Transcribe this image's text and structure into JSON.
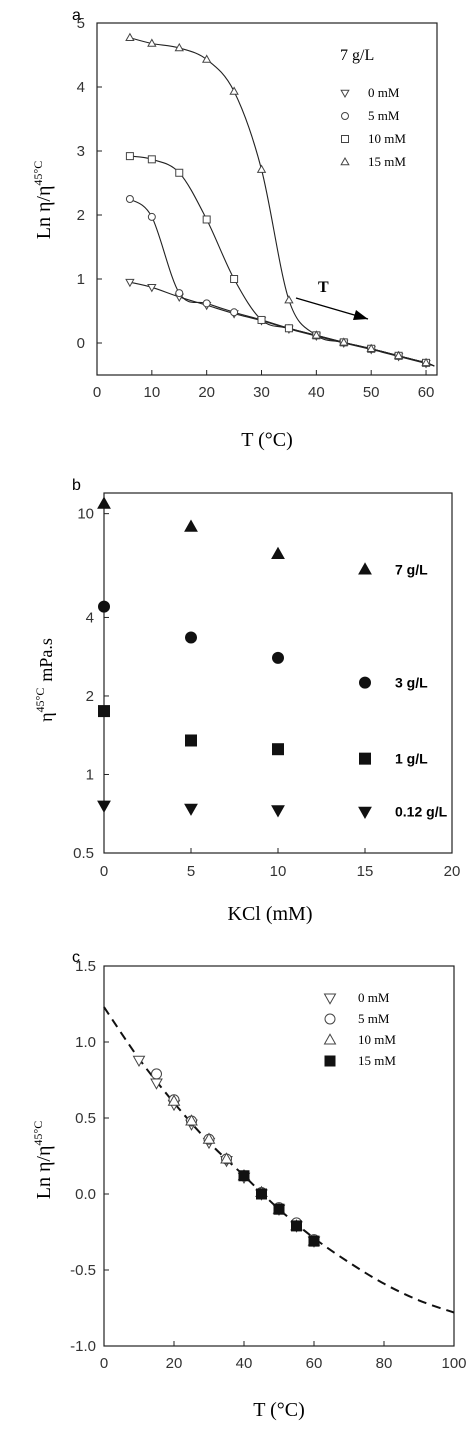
{
  "chart_data": [
    {
      "panel": "a",
      "type": "scatter",
      "xlabel": "T (°C)",
      "ylabel": "Ln η/η",
      "ylabel_sup": "45°C",
      "xlim": [
        0,
        62
      ],
      "ylim": [
        -0.5,
        5
      ],
      "xticks": [
        "0",
        "10",
        "20",
        "30",
        "40",
        "50",
        "60"
      ],
      "yticks": [
        "0",
        "1",
        "2",
        "3",
        "4",
        "5"
      ],
      "annotation": "7 g/L",
      "arrow_label": "T",
      "series": [
        {
          "name": "0 mM",
          "marker": "triangle-down",
          "x": [
            6,
            10,
            15,
            20,
            25,
            30,
            35,
            40,
            45,
            50,
            55,
            60
          ],
          "y": [
            0.95,
            0.87,
            0.72,
            0.59,
            0.46,
            0.35,
            0.22,
            0.11,
            0.0,
            -0.1,
            -0.21,
            -0.32
          ]
        },
        {
          "name": "5 mM",
          "marker": "circle",
          "x": [
            6,
            10,
            15,
            20,
            25,
            30,
            35,
            40,
            45,
            50,
            55,
            60
          ],
          "y": [
            2.25,
            1.97,
            0.78,
            0.62,
            0.48,
            0.36,
            0.23,
            0.12,
            0.01,
            -0.09,
            -0.2,
            -0.31
          ]
        },
        {
          "name": "10 mM",
          "marker": "square",
          "x": [
            6,
            10,
            15,
            20,
            25,
            30,
            35,
            40,
            45,
            50,
            55,
            60
          ],
          "y": [
            2.92,
            2.87,
            2.66,
            1.93,
            1.0,
            0.36,
            0.23,
            0.12,
            0.01,
            -0.09,
            -0.2,
            -0.31
          ]
        },
        {
          "name": "15 mM",
          "marker": "triangle-up",
          "x": [
            6,
            10,
            15,
            20,
            25,
            30,
            35,
            40,
            45,
            50,
            55,
            60
          ],
          "y": [
            4.77,
            4.68,
            4.61,
            4.43,
            3.93,
            2.71,
            0.67,
            0.12,
            0.01,
            -0.09,
            -0.2,
            -0.31
          ]
        }
      ]
    },
    {
      "panel": "b",
      "type": "scatter",
      "xlabel": "KCl (mM)",
      "ylabel": "η",
      "ylabel_sup": "45°C",
      "ylabel_unit": "mPa.s",
      "yscale": "log",
      "xlim": [
        0,
        20
      ],
      "ylim": [
        0.5,
        12
      ],
      "xticks": [
        "0",
        "5",
        "10",
        "15",
        "20"
      ],
      "yticks": [
        {
          "value": 10,
          "label": "10"
        },
        {
          "value": 4,
          "label": "4"
        },
        {
          "value": 2,
          "label": "2"
        },
        {
          "value": 1,
          "label": "1"
        },
        {
          "value": 0.5,
          "label": "0.5"
        }
      ],
      "series": [
        {
          "name": "7 g/L",
          "marker": "triangle-up-filled",
          "x": [
            0,
            5,
            10,
            15
          ],
          "y": [
            10.9,
            8.9,
            7.0,
            6.1
          ]
        },
        {
          "name": "3 g/L",
          "marker": "circle-filled",
          "x": [
            0,
            5,
            10,
            15
          ],
          "y": [
            4.4,
            3.35,
            2.8,
            2.25
          ]
        },
        {
          "name": "1 g/L",
          "marker": "square-filled",
          "x": [
            0,
            5,
            10,
            15
          ],
          "y": [
            1.75,
            1.35,
            1.25,
            1.15
          ]
        },
        {
          "name": "0.12 g/L",
          "marker": "triangle-down-filled",
          "x": [
            0,
            5,
            10,
            15
          ],
          "y": [
            0.76,
            0.74,
            0.73,
            0.72
          ]
        }
      ]
    },
    {
      "panel": "c",
      "type": "scatter",
      "xlabel": "T (°C)",
      "ylabel": "Ln η/η",
      "ylabel_sup": "45°C",
      "xlim": [
        0,
        100
      ],
      "ylim": [
        -1.0,
        1.5
      ],
      "xticks": [
        "0",
        "20",
        "40",
        "60",
        "80",
        "100"
      ],
      "yticks": [
        "1.5",
        "1.0",
        "0.5",
        "0.0",
        "-0.5",
        "-1.0"
      ],
      "fit_curve": {
        "style": "dashed",
        "x": [
          0,
          10,
          20,
          30,
          40,
          50,
          60,
          70,
          80,
          90,
          100
        ],
        "y": [
          1.23,
          0.89,
          0.6,
          0.34,
          0.12,
          -0.1,
          -0.29,
          -0.45,
          -0.59,
          -0.7,
          -0.78
        ]
      },
      "series": [
        {
          "name": "0 mM",
          "marker": "triangle-down",
          "x": [
            10,
            15,
            20,
            25,
            30,
            35,
            40,
            45,
            50,
            55,
            60
          ],
          "y": [
            0.88,
            0.73,
            0.59,
            0.46,
            0.34,
            0.22,
            0.11,
            0.0,
            -0.1,
            -0.21,
            -0.31
          ]
        },
        {
          "name": "5 mM",
          "marker": "circle",
          "x": [
            15,
            20,
            25,
            30,
            35,
            40,
            45,
            50,
            55,
            60
          ],
          "y": [
            0.79,
            0.62,
            0.48,
            0.36,
            0.23,
            0.12,
            0.01,
            -0.09,
            -0.19,
            -0.3
          ]
        },
        {
          "name": "10 mM",
          "marker": "triangle-up",
          "x": [
            20,
            25,
            30,
            35,
            40,
            45,
            50,
            55,
            60
          ],
          "y": [
            0.61,
            0.48,
            0.36,
            0.23,
            0.12,
            0.01,
            -0.1,
            -0.21,
            -0.31
          ]
        },
        {
          "name": "15 mM",
          "marker": "square-filled",
          "x": [
            40,
            45,
            50,
            55,
            60
          ],
          "y": [
            0.12,
            0.0,
            -0.1,
            -0.21,
            -0.31
          ]
        }
      ]
    }
  ]
}
